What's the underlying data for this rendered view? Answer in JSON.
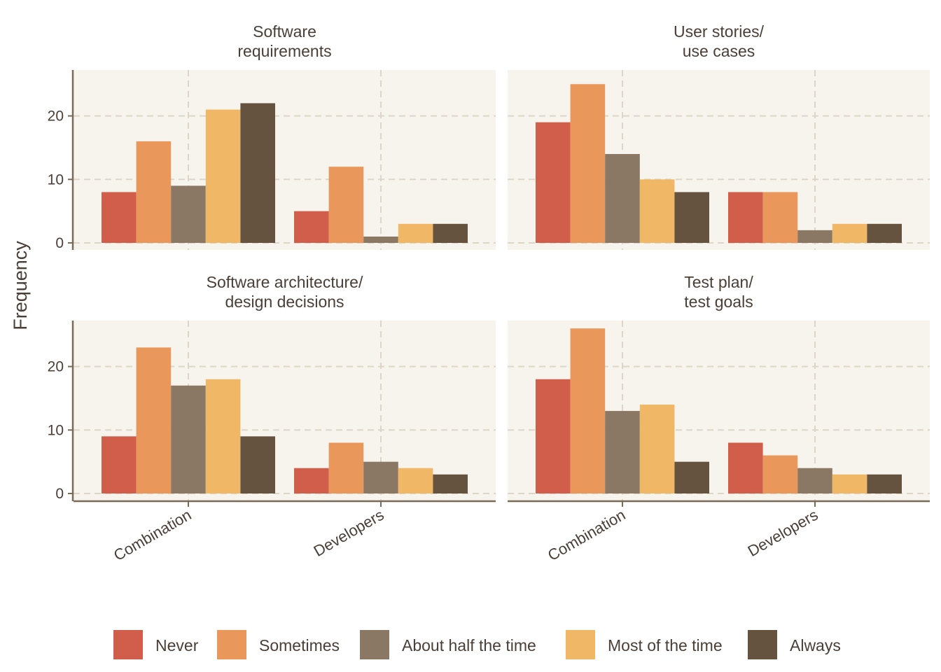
{
  "chart_data": {
    "type": "bar",
    "ylabel": "Frequency",
    "ylim": [
      0,
      26
    ],
    "y_ticks": [
      0,
      10,
      20
    ],
    "categories": [
      "Combination",
      "Developers"
    ],
    "grid": "dashed",
    "legend_position": "bottom",
    "series": [
      {
        "name": "Never",
        "color": "#d05e4a"
      },
      {
        "name": "Sometimes",
        "color": "#e9975a"
      },
      {
        "name": "About half the time",
        "color": "#8a7864"
      },
      {
        "name": "Most of the time",
        "color": "#f0b866"
      },
      {
        "name": "Always",
        "color": "#655340"
      }
    ],
    "facets": [
      {
        "title_lines": [
          "Software",
          "requirements"
        ],
        "values": {
          "Combination": [
            8,
            16,
            9,
            21,
            22
          ],
          "Developers": [
            5,
            12,
            1,
            3,
            3
          ]
        }
      },
      {
        "title_lines": [
          "User stories/",
          "use cases"
        ],
        "values": {
          "Combination": [
            19,
            25,
            14,
            10,
            8
          ],
          "Developers": [
            8,
            8,
            2,
            3,
            3
          ]
        }
      },
      {
        "title_lines": [
          "Software architecture/",
          "design decisions"
        ],
        "values": {
          "Combination": [
            9,
            23,
            17,
            18,
            9
          ],
          "Developers": [
            4,
            8,
            5,
            4,
            3
          ]
        }
      },
      {
        "title_lines": [
          "Test plan/",
          "test goals"
        ],
        "values": {
          "Combination": [
            18,
            26,
            13,
            14,
            5
          ],
          "Developers": [
            8,
            6,
            4,
            3,
            3
          ]
        }
      }
    ]
  }
}
